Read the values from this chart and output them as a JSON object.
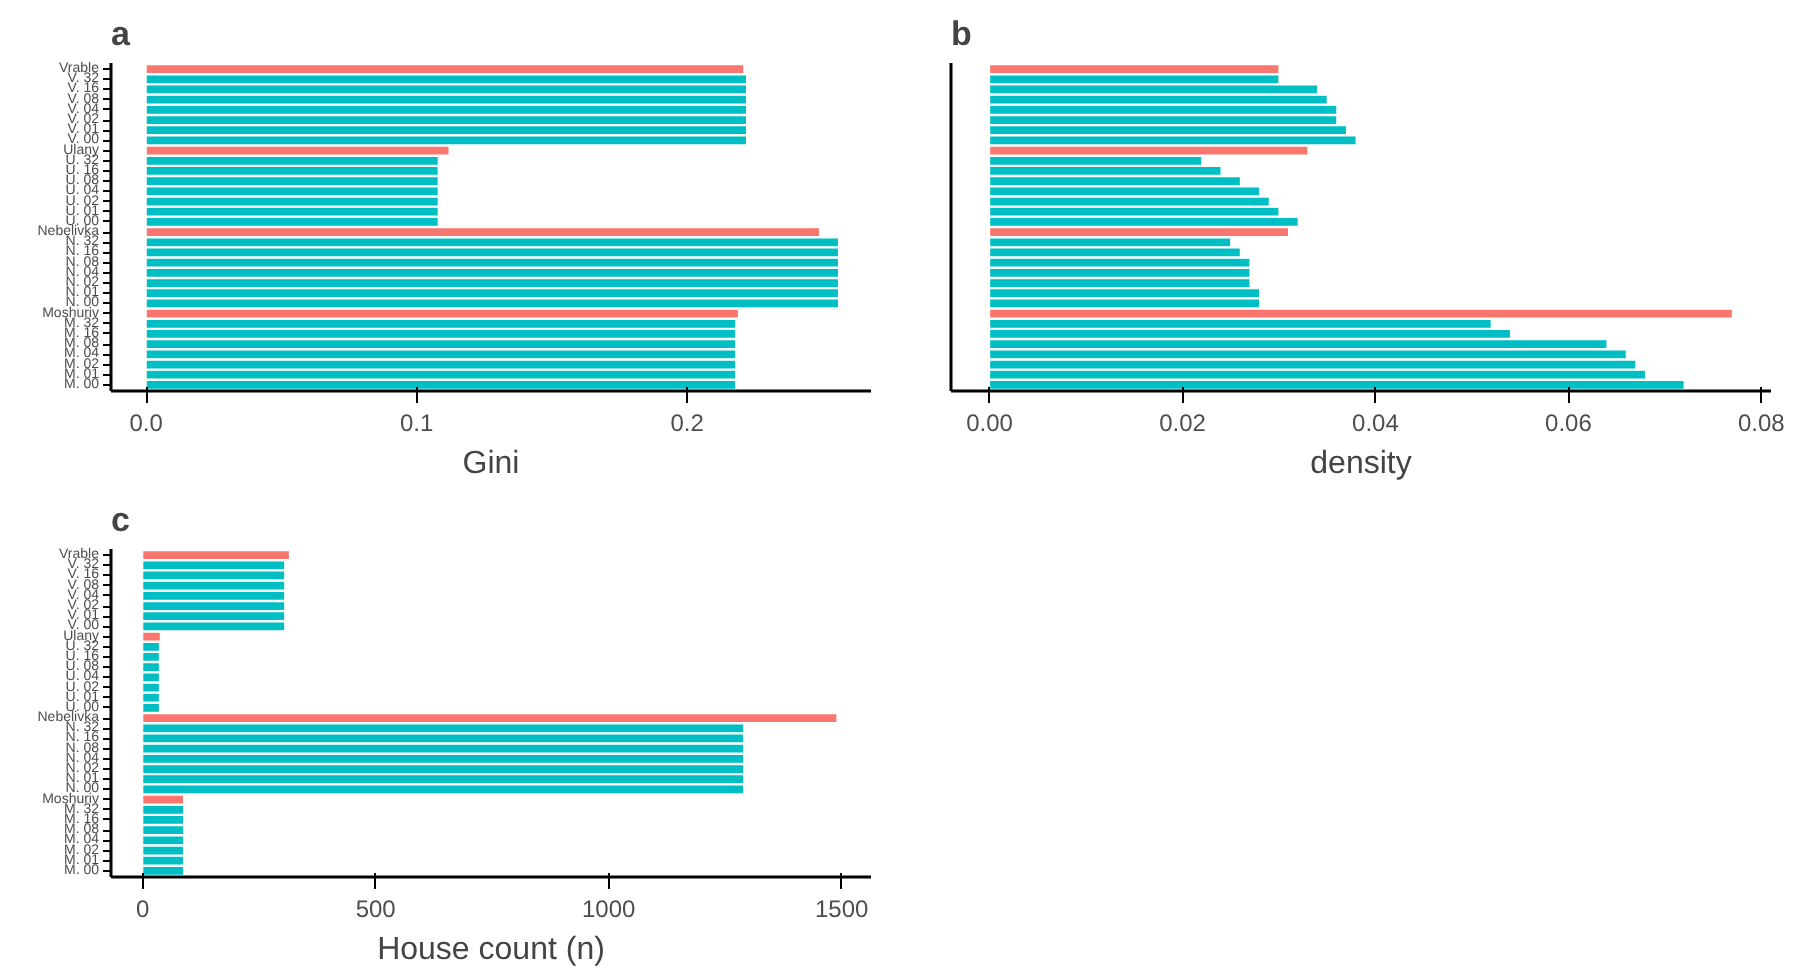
{
  "chart_data": [
    {
      "type": "bar",
      "orientation": "horizontal",
      "title": "a",
      "xlabel": "Gini",
      "categories": [
        "Vrable",
        "V. 32",
        "V. 16",
        "V. 08",
        "V. 04",
        "V. 02",
        "V. 01",
        "V. 00",
        "Ulany",
        "U. 32",
        "U. 16",
        "U. 08",
        "U. 04",
        "U. 02",
        "U. 01",
        "U. 00",
        "Nebelivka",
        "N. 32",
        "N. 16",
        "N. 08",
        "N. 04",
        "N. 02",
        "N. 01",
        "N. 00",
        "Moshuriv",
        "M. 32",
        "M. 16",
        "M. 08",
        "M. 04",
        "M. 02",
        "M. 01",
        "M. 00"
      ],
      "values": [
        0.221,
        0.222,
        0.222,
        0.222,
        0.222,
        0.222,
        0.222,
        0.222,
        0.112,
        0.108,
        0.108,
        0.108,
        0.108,
        0.108,
        0.108,
        0.108,
        0.249,
        0.256,
        0.256,
        0.256,
        0.256,
        0.256,
        0.256,
        0.256,
        0.219,
        0.218,
        0.218,
        0.218,
        0.218,
        0.218,
        0.218,
        0.218
      ],
      "colors": [
        "#f8766d",
        "#00bfc4",
        "#00bfc4",
        "#00bfc4",
        "#00bfc4",
        "#00bfc4",
        "#00bfc4",
        "#00bfc4",
        "#f8766d",
        "#00bfc4",
        "#00bfc4",
        "#00bfc4",
        "#00bfc4",
        "#00bfc4",
        "#00bfc4",
        "#00bfc4",
        "#f8766d",
        "#00bfc4",
        "#00bfc4",
        "#00bfc4",
        "#00bfc4",
        "#00bfc4",
        "#00bfc4",
        "#00bfc4",
        "#f8766d",
        "#00bfc4",
        "#00bfc4",
        "#00bfc4",
        "#00bfc4",
        "#00bfc4",
        "#00bfc4",
        "#00bfc4"
      ],
      "xlim": [
        -0.013,
        0.268
      ],
      "xticks": [
        {
          "value": 0,
          "label": "0.0"
        },
        0.1,
        0.2
      ],
      "grid": false
    },
    {
      "type": "bar",
      "orientation": "horizontal",
      "title": "b",
      "xlabel": "density",
      "categories": [
        null,
        null,
        null,
        null,
        null,
        null,
        null,
        null,
        null,
        null,
        null,
        null,
        null,
        null,
        null,
        null,
        null,
        null,
        null,
        null,
        null,
        null,
        null,
        null,
        null,
        null,
        null,
        null,
        null,
        null,
        null,
        null
      ],
      "values": [
        0.03,
        0.03,
        0.034,
        0.035,
        0.036,
        0.036,
        0.037,
        0.038,
        0.033,
        0.022,
        0.024,
        0.026,
        0.028,
        0.029,
        0.03,
        0.032,
        0.031,
        0.025,
        0.026,
        0.027,
        0.027,
        0.027,
        0.028,
        0.028,
        0.077,
        0.052,
        0.054,
        0.064,
        0.066,
        0.067,
        0.068,
        0.072
      ],
      "colors": [
        "#f8766d",
        "#00bfc4",
        "#00bfc4",
        "#00bfc4",
        "#00bfc4",
        "#00bfc4",
        "#00bfc4",
        "#00bfc4",
        "#f8766d",
        "#00bfc4",
        "#00bfc4",
        "#00bfc4",
        "#00bfc4",
        "#00bfc4",
        "#00bfc4",
        "#00bfc4",
        "#f8766d",
        "#00bfc4",
        "#00bfc4",
        "#00bfc4",
        "#00bfc4",
        "#00bfc4",
        "#00bfc4",
        "#00bfc4",
        "#f8766d",
        "#00bfc4",
        "#00bfc4",
        "#00bfc4",
        "#00bfc4",
        "#00bfc4",
        "#00bfc4",
        "#00bfc4"
      ],
      "xlim": [
        -0.004,
        0.081
      ],
      "xticks": [
        {
          "value": 0,
          "label": "0.00"
        },
        0.02,
        0.04,
        0.06,
        0.08
      ],
      "tick_labels": "x",
      "grid": false
    },
    {
      "type": "bar",
      "orientation": "horizontal",
      "title": "c",
      "xlabel": "House count (n)",
      "categories": [
        "Vrable",
        "V. 32",
        "V. 16",
        "V. 08",
        "V. 04",
        "V. 02",
        "V. 01",
        "V. 00",
        "Ulany",
        "U. 32",
        "U. 16",
        "U. 08",
        "U. 04",
        "U. 02",
        "U. 01",
        "U. 00",
        "Nebelivka",
        "N. 32",
        "N. 16",
        "N. 08",
        "N. 04",
        "N. 02",
        "N. 01",
        "N. 00",
        "Moshuriv",
        "M. 32",
        "M. 16",
        "M. 08",
        "M. 04",
        "M. 02",
        "M. 01",
        "M. 00"
      ],
      "values": [
        315,
        305,
        305,
        305,
        305,
        305,
        305,
        305,
        38,
        36,
        36,
        36,
        36,
        36,
        36,
        36,
        1490,
        1290,
        1290,
        1290,
        1290,
        1290,
        1290,
        1290,
        88,
        88,
        88,
        88,
        88,
        88,
        88,
        88
      ],
      "colors": [
        "#f8766d",
        "#00bfc4",
        "#00bfc4",
        "#00bfc4",
        "#00bfc4",
        "#00bfc4",
        "#00bfc4",
        "#00bfc4",
        "#f8766d",
        "#00bfc4",
        "#00bfc4",
        "#00bfc4",
        "#00bfc4",
        "#00bfc4",
        "#00bfc4",
        "#00bfc4",
        "#f8766d",
        "#00bfc4",
        "#00bfc4",
        "#00bfc4",
        "#00bfc4",
        "#00bfc4",
        "#00bfc4",
        "#00bfc4",
        "#f8766d",
        "#00bfc4",
        "#00bfc4",
        "#00bfc4",
        "#00bfc4",
        "#00bfc4",
        "#00bfc4",
        "#00bfc4"
      ],
      "xlim": [
        -68,
        1563
      ],
      "xticks": [
        0,
        500,
        1000,
        1500
      ],
      "grid": false
    }
  ]
}
